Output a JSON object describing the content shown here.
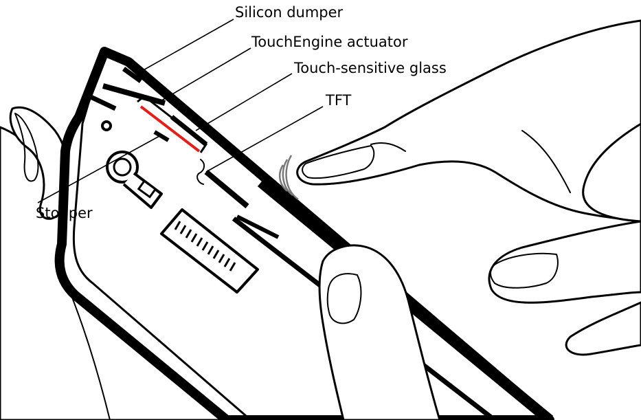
{
  "labels": {
    "silicon_dumper": "Silicon dumper",
    "touchengine_actuator": "TouchEngine actuator",
    "touch_sensitive_glass": "Touch-sensitive glass",
    "tft": "TFT",
    "stopper": "Stopper"
  },
  "colors": {
    "line": "#000000",
    "background": "#ffffff",
    "actuator": "#e0201c"
  }
}
